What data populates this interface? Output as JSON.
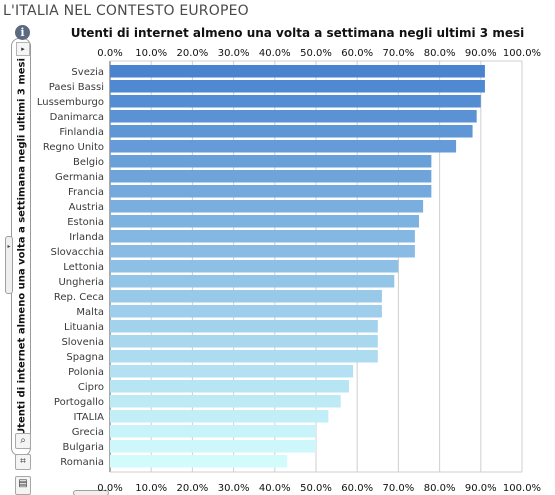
{
  "page": {
    "title": "L'ITALIA NEL CONTESTO EUROPEO"
  },
  "side_panel": {
    "info_icon": "info-icon",
    "expand_icon": "▸",
    "vertical_label": "Utenti di internet almeno una volta a settimana negli ultimi 3 mesi",
    "collapse_icon": "▸",
    "tools": [
      {
        "icon": "magnifier-icon",
        "glyph": "⌕"
      },
      {
        "icon": "crop-icon",
        "glyph": "⌗"
      },
      {
        "icon": "print-icon",
        "glyph": "▤"
      }
    ]
  },
  "chart_data": {
    "type": "bar",
    "orientation": "horizontal",
    "title": "Utenti di internet almeno una volta a settimana negli ultimi 3 mesi",
    "categories": [
      "Svezia",
      "Paesi Bassi",
      "Lussemburgo",
      "Danimarca",
      "Finlandia",
      "Regno Unito",
      "Belgio",
      "Germania",
      "Francia",
      "Austria",
      "Estonia",
      "Irlanda",
      "Slovacchia",
      "Lettonia",
      "Ungheria",
      "Rep. Ceca",
      "Malta",
      "Lituania",
      "Slovenia",
      "Spagna",
      "Polonia",
      "Cipro",
      "Portogallo",
      "ITALIA",
      "Grecia",
      "Bulgaria",
      "Romania"
    ],
    "values": [
      91,
      91,
      90,
      89,
      88,
      84,
      78,
      78,
      78,
      76,
      75,
      74,
      74,
      70,
      69,
      66,
      66,
      65,
      65,
      65,
      59,
      58,
      56,
      53,
      50,
      50,
      43
    ],
    "xlim": [
      0,
      100
    ],
    "xticks": [
      "0.0%",
      "10.0%",
      "20.0%",
      "30.0%",
      "40.0%",
      "50.0%",
      "60.0%",
      "70.0%",
      "80.0%",
      "90.0%",
      "100.0%"
    ],
    "axis_labels_position": "top and bottom",
    "grid": true,
    "colors": {
      "dark": "#4a84cf",
      "light": "#d2fcfc",
      "grid": "#cfcfcf",
      "axis": "#555555"
    }
  }
}
